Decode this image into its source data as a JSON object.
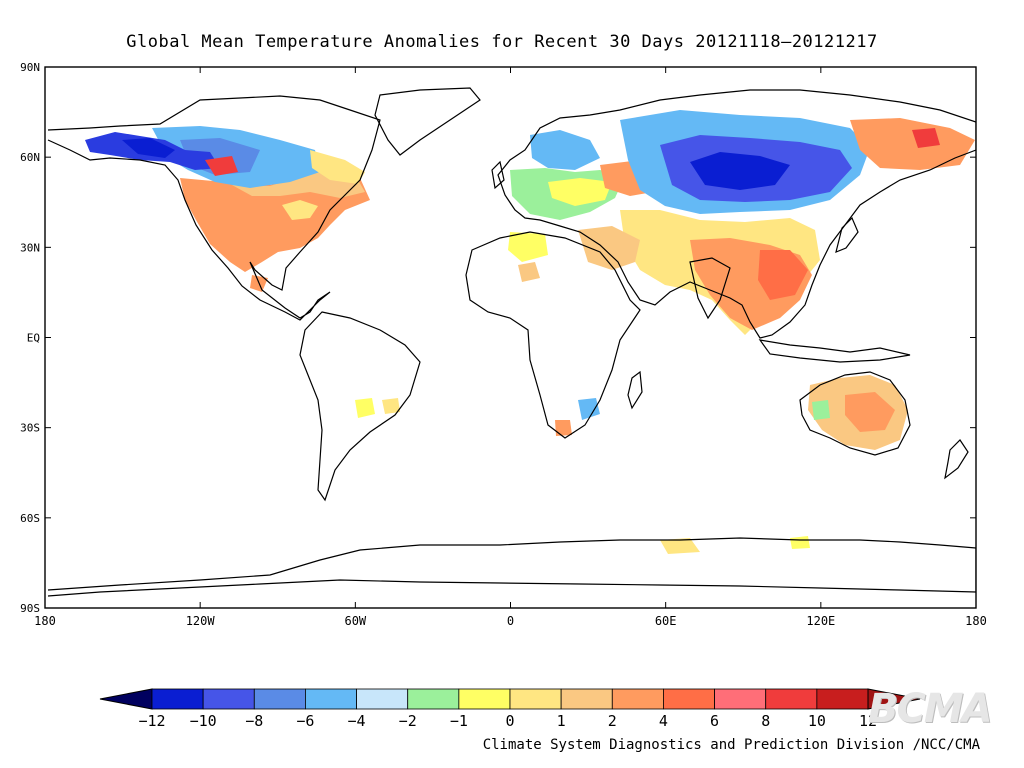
{
  "map": {
    "title": "Global Mean Temperature Anomalies for Recent 30 Days  20121118–20121217",
    "projection": "equirectangular",
    "extent": {
      "lon": [
        -180,
        180
      ],
      "lat": [
        -90,
        90
      ]
    },
    "lat_labels": [
      "90N",
      "60N",
      "30N",
      "EQ",
      "30S",
      "60S",
      "90S"
    ],
    "lat_values": [
      90,
      60,
      30,
      0,
      -30,
      -60,
      -90
    ],
    "lon_labels": [
      "180",
      "120W",
      "60W",
      "0",
      "60E",
      "120E",
      "180"
    ],
    "lon_values": [
      -180,
      -120,
      -60,
      0,
      60,
      120,
      180
    ]
  },
  "colorbar": {
    "labels": [
      "-12",
      "-10",
      "-8",
      "-6",
      "-4",
      "-2",
      "-1",
      "0",
      "1",
      "2",
      "4",
      "6",
      "8",
      "10",
      "12"
    ],
    "colors": [
      "#00005f",
      "#0a1ed2",
      "#4655e8",
      "#5a8be6",
      "#64b9f5",
      "#c8e6fa",
      "#9bf09b",
      "#ffff64",
      "#ffe682",
      "#fac882",
      "#ff9b5f",
      "#ff6e46",
      "#ff6e78",
      "#f03c3c",
      "#c81e1e",
      "#a01414"
    ]
  },
  "credit": "Climate System Diagnostics and Prediction Division /NCC/CMA",
  "watermark": "BCMA",
  "anomaly_regions": [
    {
      "name": "alaska-cold",
      "color": "#2a3ce0"
    },
    {
      "name": "canada-cool",
      "color": "#64b9f5"
    },
    {
      "name": "usa-warm",
      "color": "#ff9b5f"
    },
    {
      "name": "siberia-cold",
      "color": "#4655e8"
    },
    {
      "name": "east-asia-warm",
      "color": "#ff9b5f"
    },
    {
      "name": "australia-warm",
      "color": "#fac882"
    }
  ]
}
